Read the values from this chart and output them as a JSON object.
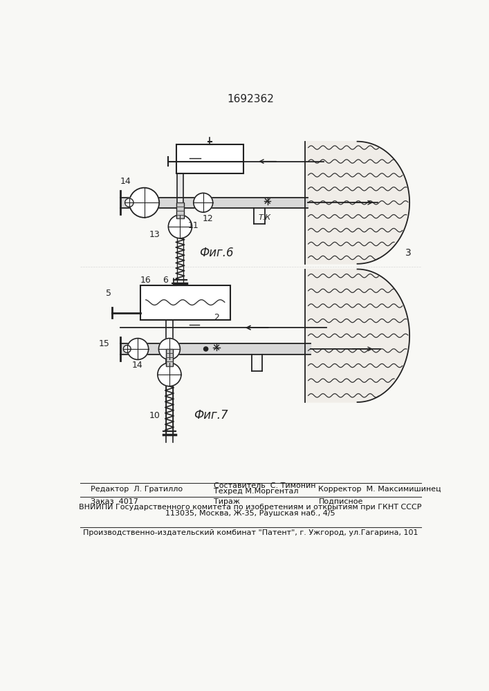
{
  "patent_number": "1692362",
  "fig6_label": "Фиг.6",
  "fig7_label": "Фиг.7",
  "editor_line": "Редактор  Л. Гратилло",
  "composer_line1": "Составитель  С. Тимонин",
  "composer_line2": "Техред М.Моргентал",
  "corrector_line": "Корректор  М. Максимишинец",
  "order_line": "Заказ  4017",
  "tirage_line": "Тираж",
  "signed_line": "Подписное",
  "vniip_line": "ВНИИПИ Государственного комитета по изобретениям и открытиям при ГКНТ СССР",
  "address_line": "113035, Москва, Ж-35, Раушская наб., 4/5",
  "factory_line": "Производственно-издательский комбинат \"Патент\", г. Ужгород, ул.Гагарина, 101",
  "bg_color": "#f8f8f5"
}
